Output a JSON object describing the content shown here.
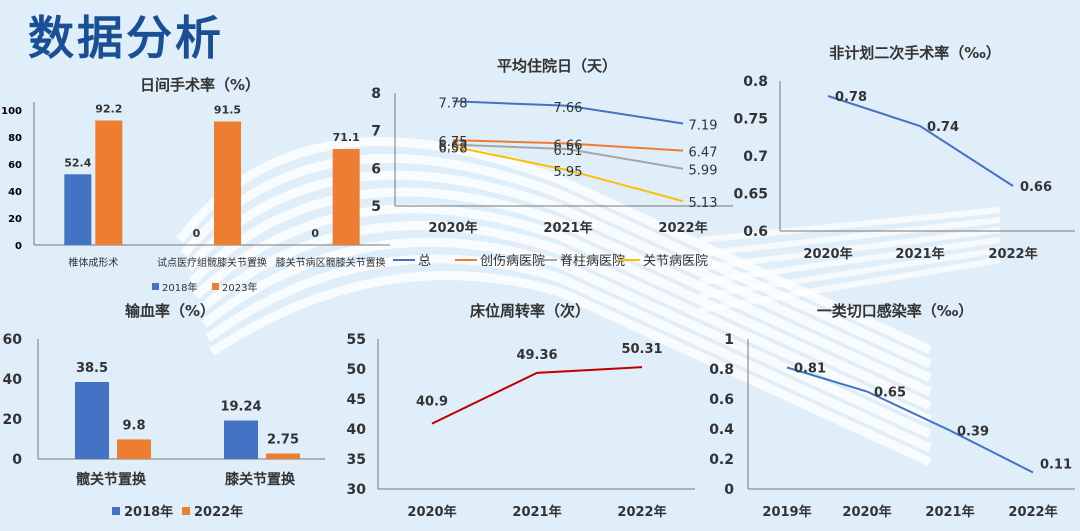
{
  "page": {
    "title": "数据分析"
  },
  "colors": {
    "blue": "#4472c4",
    "orange": "#ed7d31",
    "gray": "#a5a5a5",
    "yellow": "#ffc000",
    "red": "#c00000",
    "title_blue": "#1a4f96"
  },
  "chart_data": [
    {
      "id": "day_surgery",
      "type": "bar",
      "title": "日间手术率（%）",
      "categories": [
        "椎体成形术",
        "试点医疗组髋膝关节置换",
        "膝关节病区髋膝关节置换"
      ],
      "series": [
        {
          "name": "2018年",
          "values": [
            52.4,
            0,
            0
          ],
          "labels": [
            "52.4",
            "0",
            "0"
          ]
        },
        {
          "name": "2023年",
          "values": [
            92.2,
            91.5,
            71.1
          ],
          "labels": [
            "92.2",
            "91.5",
            "71.1"
          ]
        }
      ],
      "yticks": [
        "0",
        "20",
        "40",
        "60",
        "80",
        "100"
      ],
      "ylim": [
        0,
        100
      ],
      "legend": "bottom"
    },
    {
      "id": "avg_stay",
      "type": "line",
      "title": "平均住院日（天）",
      "categories": [
        "2020年",
        "2021年",
        "2022年"
      ],
      "series": [
        {
          "name": "总",
          "values": [
            7.78,
            7.66,
            7.19
          ]
        },
        {
          "name": "创伤病医院",
          "values": [
            6.75,
            6.66,
            6.47
          ]
        },
        {
          "name": "脊柱病医院",
          "values": [
            6.63,
            6.51,
            5.99
          ]
        },
        {
          "name": "关节病医院",
          "values": [
            6.58,
            5.95,
            5.13
          ]
        }
      ],
      "labels": [
        [
          "7.78",
          "7.66",
          "7.19"
        ],
        [
          "6.75",
          "6.66",
          "6.47"
        ],
        [
          "6.63",
          "6.51",
          "5.99"
        ],
        [
          "6.58",
          "5.95",
          "5.13"
        ]
      ],
      "yticks": [
        "5",
        "6",
        "7",
        "8"
      ],
      "ylim": [
        5,
        8
      ],
      "legend": "bottom"
    },
    {
      "id": "unplanned_reop",
      "type": "line",
      "title": "非计划二次手术率（‰）",
      "categories": [
        "2020年",
        "2021年",
        "2022年"
      ],
      "series": [
        {
          "name": "非计划二次手术率",
          "values": [
            0.78,
            0.74,
            0.66
          ]
        }
      ],
      "labels": [
        "0.78",
        "0.74",
        "0.66"
      ],
      "yticks": [
        "0.6",
        "0.65",
        "0.7",
        "0.75",
        "0.8"
      ],
      "ylim": [
        0.6,
        0.8
      ]
    },
    {
      "id": "transfusion",
      "type": "bar",
      "title": "输血率（%）",
      "categories": [
        "髋关节置换",
        "膝关节置换"
      ],
      "series": [
        {
          "name": "2018年",
          "values": [
            38.5,
            19.24
          ],
          "labels": [
            "38.5",
            "19.24"
          ]
        },
        {
          "name": "2022年",
          "values": [
            9.8,
            2.75
          ],
          "labels": [
            "9.8",
            "2.75"
          ]
        }
      ],
      "yticks": [
        "0",
        "20",
        "40",
        "60"
      ],
      "ylim": [
        0,
        60
      ],
      "legend": "bottom"
    },
    {
      "id": "bed_turnover",
      "type": "line",
      "title": "床位周转率（次）",
      "categories": [
        "2020年",
        "2021年",
        "2022年"
      ],
      "series": [
        {
          "name": "床位周转率",
          "values": [
            40.9,
            49.36,
            50.31
          ]
        }
      ],
      "labels": [
        "40.9",
        "49.36",
        "50.31"
      ],
      "yticks": [
        "30",
        "35",
        "40",
        "45",
        "50",
        "55"
      ],
      "ylim": [
        30,
        55
      ]
    },
    {
      "id": "class1_infection",
      "type": "line",
      "title": "一类切口感染率（‰）",
      "categories": [
        "2019年",
        "2020年",
        "2021年",
        "2022年"
      ],
      "series": [
        {
          "name": "一类切口感染率",
          "values": [
            0.81,
            0.65,
            0.39,
            0.11
          ]
        }
      ],
      "labels": [
        "0.81",
        "0.65",
        "0.39",
        "0.11"
      ],
      "yticks": [
        "0",
        "0.2",
        "0.4",
        "0.6",
        "0.8",
        "1"
      ],
      "ylim": [
        0,
        1
      ]
    }
  ]
}
